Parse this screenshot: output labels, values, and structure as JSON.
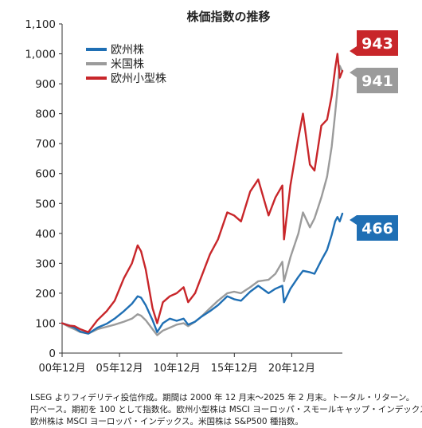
{
  "chart_data": {
    "type": "line",
    "title": "株価指数の推移",
    "xlabel": "",
    "ylabel": "",
    "x_tick_labels": [
      "00年12月",
      "05年12月",
      "10年12月",
      "15年12月",
      "20年12月"
    ],
    "x_tick_years": [
      2000.92,
      2005.92,
      2010.92,
      2015.92,
      2020.92
    ],
    "xlim": [
      2000.92,
      2025.33
    ],
    "ylim": [
      0,
      1100
    ],
    "y_ticks": [
      0,
      100,
      200,
      300,
      400,
      500,
      600,
      700,
      800,
      900,
      1000,
      1100
    ],
    "y_tick_labels": [
      "0",
      "100",
      "200",
      "300",
      "400",
      "500",
      "600",
      "700",
      "800",
      "900",
      "1,000",
      "1,100"
    ],
    "legend_position": "top-left",
    "series": [
      {
        "name": "欧州株",
        "color": "#1f6fb4",
        "end_label": "466",
        "points": [
          [
            2000.92,
            100
          ],
          [
            2001.5,
            93
          ],
          [
            2002.0,
            85
          ],
          [
            2002.5,
            72
          ],
          [
            2003.2,
            65
          ],
          [
            2004.0,
            85
          ],
          [
            2004.8,
            98
          ],
          [
            2005.5,
            115
          ],
          [
            2006.3,
            140
          ],
          [
            2007.0,
            165
          ],
          [
            2007.5,
            190
          ],
          [
            2007.8,
            185
          ],
          [
            2008.2,
            160
          ],
          [
            2008.8,
            110
          ],
          [
            2009.2,
            70
          ],
          [
            2009.7,
            100
          ],
          [
            2010.3,
            115
          ],
          [
            2010.9,
            108
          ],
          [
            2011.5,
            115
          ],
          [
            2011.9,
            95
          ],
          [
            2012.5,
            105
          ],
          [
            2013.0,
            120
          ],
          [
            2013.8,
            140
          ],
          [
            2014.5,
            160
          ],
          [
            2015.3,
            190
          ],
          [
            2015.9,
            180
          ],
          [
            2016.5,
            175
          ],
          [
            2017.3,
            205
          ],
          [
            2018.0,
            225
          ],
          [
            2018.9,
            200
          ],
          [
            2019.5,
            215
          ],
          [
            2020.1,
            225
          ],
          [
            2020.25,
            170
          ],
          [
            2020.8,
            215
          ],
          [
            2021.5,
            255
          ],
          [
            2021.9,
            275
          ],
          [
            2022.5,
            270
          ],
          [
            2022.9,
            265
          ],
          [
            2023.5,
            310
          ],
          [
            2024.0,
            345
          ],
          [
            2024.4,
            395
          ],
          [
            2024.7,
            440
          ],
          [
            2024.9,
            455
          ],
          [
            2025.1,
            440
          ],
          [
            2025.33,
            466
          ]
        ]
      },
      {
        "name": "米国株",
        "color": "#9b9b9b",
        "end_label": "941",
        "points": [
          [
            2000.92,
            100
          ],
          [
            2001.5,
            88
          ],
          [
            2002.0,
            80
          ],
          [
            2002.5,
            70
          ],
          [
            2003.2,
            65
          ],
          [
            2004.0,
            80
          ],
          [
            2004.8,
            88
          ],
          [
            2005.5,
            95
          ],
          [
            2006.3,
            105
          ],
          [
            2007.0,
            115
          ],
          [
            2007.5,
            130
          ],
          [
            2007.8,
            125
          ],
          [
            2008.2,
            110
          ],
          [
            2008.8,
            80
          ],
          [
            2009.2,
            60
          ],
          [
            2009.7,
            75
          ],
          [
            2010.3,
            85
          ],
          [
            2010.9,
            95
          ],
          [
            2011.5,
            100
          ],
          [
            2011.9,
            90
          ],
          [
            2012.5,
            105
          ],
          [
            2013.0,
            120
          ],
          [
            2013.8,
            150
          ],
          [
            2014.5,
            175
          ],
          [
            2015.3,
            200
          ],
          [
            2015.9,
            205
          ],
          [
            2016.5,
            200
          ],
          [
            2017.3,
            220
          ],
          [
            2018.0,
            240
          ],
          [
            2018.9,
            245
          ],
          [
            2019.5,
            265
          ],
          [
            2020.1,
            305
          ],
          [
            2020.25,
            240
          ],
          [
            2020.8,
            320
          ],
          [
            2021.5,
            400
          ],
          [
            2021.9,
            470
          ],
          [
            2022.5,
            420
          ],
          [
            2022.9,
            450
          ],
          [
            2023.5,
            520
          ],
          [
            2024.0,
            590
          ],
          [
            2024.4,
            690
          ],
          [
            2024.7,
            800
          ],
          [
            2024.9,
            880
          ],
          [
            2025.1,
            960
          ],
          [
            2025.33,
            941
          ]
        ]
      },
      {
        "name": "欧州小型株",
        "color": "#c8262a",
        "end_label": "943",
        "points": [
          [
            2000.92,
            100
          ],
          [
            2001.5,
            92
          ],
          [
            2002.0,
            90
          ],
          [
            2002.5,
            80
          ],
          [
            2003.2,
            70
          ],
          [
            2004.0,
            110
          ],
          [
            2004.8,
            140
          ],
          [
            2005.5,
            175
          ],
          [
            2006.3,
            250
          ],
          [
            2007.0,
            300
          ],
          [
            2007.5,
            360
          ],
          [
            2007.8,
            340
          ],
          [
            2008.2,
            280
          ],
          [
            2008.8,
            150
          ],
          [
            2009.2,
            100
          ],
          [
            2009.7,
            170
          ],
          [
            2010.3,
            190
          ],
          [
            2010.9,
            200
          ],
          [
            2011.5,
            220
          ],
          [
            2011.9,
            170
          ],
          [
            2012.5,
            200
          ],
          [
            2013.0,
            250
          ],
          [
            2013.8,
            330
          ],
          [
            2014.5,
            380
          ],
          [
            2015.3,
            470
          ],
          [
            2015.9,
            460
          ],
          [
            2016.5,
            440
          ],
          [
            2017.3,
            540
          ],
          [
            2018.0,
            580
          ],
          [
            2018.9,
            460
          ],
          [
            2019.5,
            520
          ],
          [
            2020.1,
            560
          ],
          [
            2020.25,
            380
          ],
          [
            2020.8,
            560
          ],
          [
            2021.5,
            720
          ],
          [
            2021.9,
            800
          ],
          [
            2022.5,
            630
          ],
          [
            2022.9,
            610
          ],
          [
            2023.5,
            760
          ],
          [
            2024.0,
            780
          ],
          [
            2024.4,
            860
          ],
          [
            2024.7,
            950
          ],
          [
            2024.9,
            1000
          ],
          [
            2025.1,
            920
          ],
          [
            2025.33,
            943
          ]
        ]
      }
    ]
  },
  "notes": [
    "LSEG よりフィデリティ投信作成。期間は 2000 年 12 月末～2025 年 2 月末。トータル・リターン。",
    "円ベース。期初を 100 として指数化。欧州小型株は MSCI ヨーロッパ・スモールキャップ・インデックス。",
    "欧州株は MSCI ヨーロッパ・インデックス。米国株は S&P500 種指数。"
  ]
}
